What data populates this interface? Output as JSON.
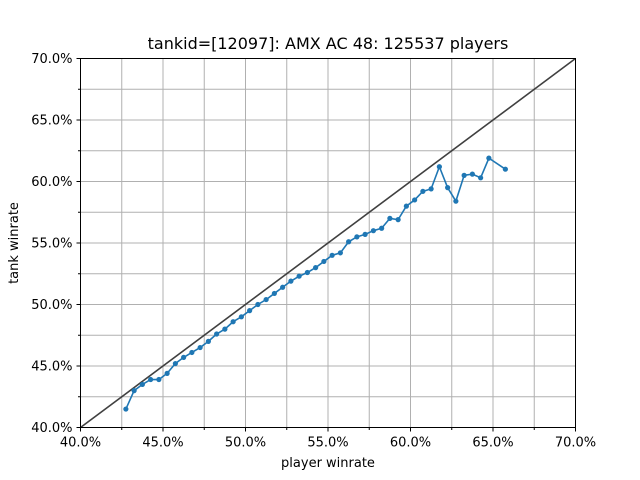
{
  "chart_data": {
    "type": "line",
    "title": "tankid=[12097]: AMX AC 48: 125537 players",
    "xlabel": "player winrate",
    "ylabel": "tank winrate",
    "xlim": [
      0.4,
      0.7
    ],
    "ylim": [
      0.4,
      0.7
    ],
    "xticks": [
      0.4,
      0.45,
      0.5,
      0.55,
      0.6,
      0.65,
      0.7
    ],
    "xtick_labels": [
      "40.0%",
      "45.0%",
      "50.0%",
      "55.0%",
      "60.0%",
      "65.0%",
      "70.0%"
    ],
    "yticks": [
      0.4,
      0.45,
      0.5,
      0.55,
      0.6,
      0.65,
      0.7
    ],
    "ytick_labels": [
      "40.0%",
      "45.0%",
      "50.0%",
      "55.0%",
      "60.0%",
      "65.0%",
      "70.0%"
    ],
    "grid": true,
    "grid_step": 0.025,
    "reference_line": {
      "x": [
        0.4,
        0.7
      ],
      "y": [
        0.4,
        0.7
      ],
      "color": "#404040"
    },
    "series": [
      {
        "color": "#1f77b4",
        "marker": "circle",
        "x": [
          0.4275,
          0.4325,
          0.4375,
          0.4425,
          0.4475,
          0.4525,
          0.4575,
          0.4625,
          0.4675,
          0.4725,
          0.4775,
          0.4825,
          0.4875,
          0.4925,
          0.4975,
          0.5025,
          0.5075,
          0.5125,
          0.5175,
          0.5225,
          0.5275,
          0.5325,
          0.5375,
          0.5425,
          0.5475,
          0.5525,
          0.5575,
          0.5625,
          0.5675,
          0.5725,
          0.5775,
          0.5825,
          0.5875,
          0.5925,
          0.5975,
          0.6025,
          0.6075,
          0.6125,
          0.6175,
          0.6225,
          0.6275,
          0.6325,
          0.6375,
          0.6425,
          0.6475,
          0.6575
        ],
        "y": [
          0.415,
          0.43,
          0.435,
          0.439,
          0.439,
          0.444,
          0.452,
          0.457,
          0.461,
          0.465,
          0.47,
          0.476,
          0.48,
          0.486,
          0.49,
          0.495,
          0.5,
          0.504,
          0.509,
          0.514,
          0.519,
          0.523,
          0.526,
          0.53,
          0.535,
          0.54,
          0.542,
          0.551,
          0.555,
          0.557,
          0.56,
          0.562,
          0.57,
          0.569,
          0.58,
          0.585,
          0.592,
          0.594,
          0.612,
          0.595,
          0.584,
          0.605,
          0.606,
          0.603,
          0.619,
          0.61
        ]
      }
    ]
  }
}
